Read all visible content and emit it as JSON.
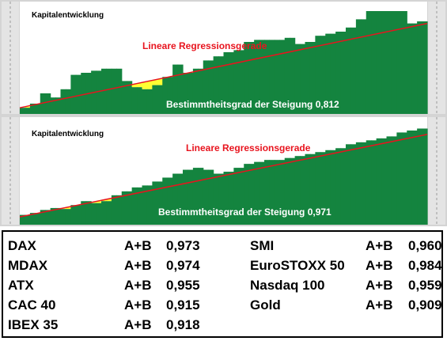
{
  "chart_data": [
    {
      "type": "area",
      "title": "Kapitalentwicklung",
      "annotations": {
        "regression_label": "Lineare Regressionsgerade",
        "r_squared_label": "Bestimmtheitsgrad der Steigung 0,812"
      },
      "r_squared": 0.812,
      "ylim": [
        0,
        100
      ],
      "regression": [
        6,
        88
      ],
      "series": [
        {
          "values": [
            6,
            6,
            10,
            10,
            20,
            20,
            16,
            16,
            24,
            24,
            38,
            38,
            40,
            40,
            42,
            42,
            44,
            44,
            44,
            44,
            32,
            32,
            26,
            26,
            24,
            24,
            28,
            28,
            36,
            36,
            48,
            48,
            40,
            40,
            44,
            44,
            52,
            52,
            56,
            56,
            60,
            60,
            62,
            62,
            70,
            70,
            72,
            72,
            72,
            72,
            72,
            72,
            74,
            74,
            68,
            68,
            70,
            70,
            76,
            76,
            78,
            78,
            80,
            80,
            84,
            84,
            92,
            92,
            100,
            100,
            100,
            100,
            100,
            100,
            100,
            100,
            88,
            88,
            90,
            90
          ]
        }
      ],
      "colors": {
        "area": "#14843f",
        "gap": "#ffff33",
        "regression": "#e8141e",
        "label": "#e8141e"
      }
    },
    {
      "type": "area",
      "title": "Kapitalentwicklung",
      "annotations": {
        "regression_label": "Lineare Regressionsgerade",
        "r_squared_label": "Bestimmtheitsgrad der Steigung 0,971"
      },
      "r_squared": 0.971,
      "ylim": [
        0,
        100
      ],
      "regression": [
        8,
        92
      ],
      "series": [
        {
          "values": [
            10,
            10,
            12,
            12,
            15,
            15,
            17,
            17,
            16,
            16,
            20,
            20,
            24,
            24,
            22,
            22,
            24,
            24,
            30,
            30,
            34,
            34,
            38,
            38,
            40,
            40,
            44,
            44,
            48,
            48,
            52,
            52,
            56,
            56,
            58,
            58,
            56,
            56,
            52,
            52,
            54,
            54,
            58,
            58,
            62,
            62,
            64,
            64,
            66,
            66,
            66,
            66,
            68,
            68,
            70,
            70,
            72,
            72,
            74,
            74,
            76,
            76,
            78,
            78,
            82,
            82,
            84,
            84,
            86,
            86,
            88,
            88,
            90,
            90,
            94,
            94,
            96,
            96,
            98,
            98
          ]
        }
      ],
      "colors": {
        "area": "#14843f",
        "gap": "#ffff33",
        "regression": "#e8141e",
        "label": "#e8141e"
      }
    },
    {
      "type": "table",
      "rows": [
        {
          "market": "DAX",
          "system": "A+B",
          "value": "0,973"
        },
        {
          "market": "MDAX",
          "system": "A+B",
          "value": "0,974"
        },
        {
          "market": "ATX",
          "system": "A+B",
          "value": "0,955"
        },
        {
          "market": "CAC 40",
          "system": "A+B",
          "value": "0,915"
        },
        {
          "market": "IBEX 35",
          "system": "A+B",
          "value": "0,918"
        },
        {
          "market": "SMI",
          "system": "A+B",
          "value": "0,960"
        },
        {
          "market": "EuroSTOXX 50",
          "system": "A+B",
          "value": "0,984"
        },
        {
          "market": "Nasdaq 100",
          "system": "A+B",
          "value": "0,959"
        },
        {
          "market": "Gold",
          "system": "A+B",
          "value": "0,909"
        }
      ]
    }
  ]
}
